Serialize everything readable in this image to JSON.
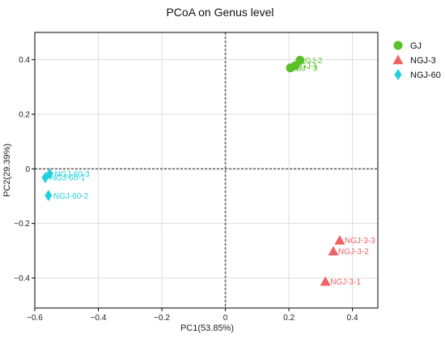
{
  "chart_data": {
    "type": "scatter",
    "title": "PCoA on Genus level",
    "xlabel": "PC1(53.85%)",
    "ylabel": "PC2(29.39%)",
    "xlim": [
      -0.6,
      0.48
    ],
    "ylim": [
      -0.51,
      0.5
    ],
    "x_ticks": [
      -0.6,
      -0.4,
      -0.2,
      0,
      0.2,
      0.4
    ],
    "y_ticks": [
      0.4,
      0.2,
      0,
      -0.2,
      -0.4
    ],
    "x_tick_labels": [
      "−0.6",
      "−0.4",
      "−0.2",
      "0",
      "0.2",
      "0.4"
    ],
    "y_tick_labels": [
      "0.4",
      "0.2",
      "0",
      "−0.2",
      "−0.4"
    ],
    "grid": true,
    "zero_lines": true,
    "legend_position": "right",
    "series": [
      {
        "name": "GJ",
        "marker": "circle",
        "color": "#5ac02a",
        "points": [
          {
            "label": "GJ-2",
            "x": 0.235,
            "y": 0.398
          },
          {
            "label": "GJ-1",
            "x": 0.22,
            "y": 0.378
          },
          {
            "label": "GJ - 3",
            "x": 0.205,
            "y": 0.37
          }
        ]
      },
      {
        "name": "NGJ-3",
        "marker": "triangle",
        "color": "#ee6363",
        "points": [
          {
            "label": "NGJ-3-3",
            "x": 0.36,
            "y": -0.262
          },
          {
            "label": "NGJ-3-2",
            "x": 0.34,
            "y": -0.302
          },
          {
            "label": "NGJ-3-1",
            "x": 0.315,
            "y": -0.413
          }
        ]
      },
      {
        "name": "NGJ-60",
        "marker": "diamond",
        "color": "#21d1e0",
        "points": [
          {
            "label": "NGJ-60-3",
            "x": -0.553,
            "y": -0.018
          },
          {
            "label": "NGJ-60-1",
            "x": -0.567,
            "y": -0.032
          },
          {
            "label": "NGJ-60-2",
            "x": -0.557,
            "y": -0.098
          }
        ]
      }
    ]
  }
}
